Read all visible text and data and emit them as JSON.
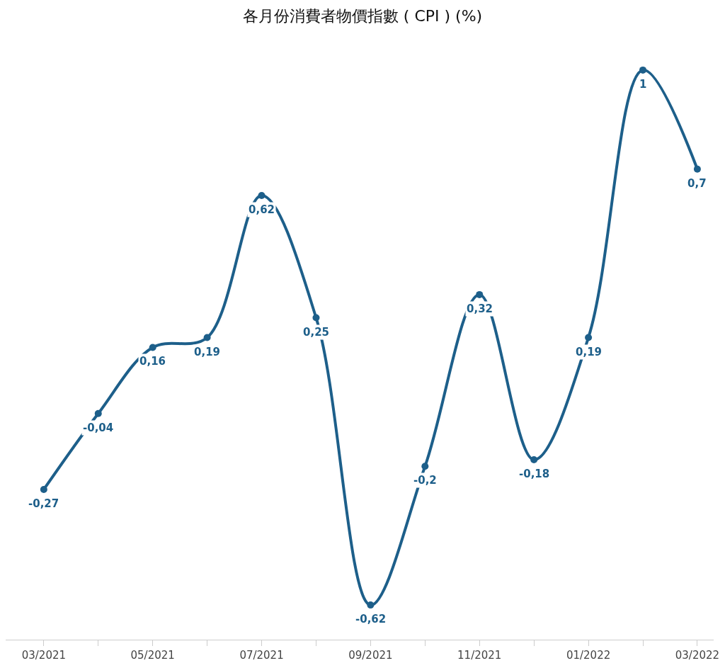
{
  "chart_data": {
    "type": "line",
    "title": "各月份消費者物價指數 ( CPI ) (%)",
    "categories": [
      "03/2021",
      null,
      "05/2021",
      null,
      "07/2021",
      null,
      "09/2021",
      null,
      "11/2021",
      null,
      "01/2022",
      null,
      "03/2022"
    ],
    "values": [
      -0.27,
      -0.04,
      0.16,
      0.19,
      0.62,
      0.25,
      -0.62,
      -0.2,
      0.32,
      -0.18,
      0.19,
      1,
      0.7
    ],
    "value_labels": [
      "-0,27",
      "-0,04",
      "0,16",
      "0,19",
      "0,62",
      "0,25",
      "-0,62",
      "-0,2",
      "0,32",
      "-0,18",
      "0,19",
      "1",
      "0,7"
    ],
    "color": "#1d5f8a",
    "marker": "circle",
    "line_style": "solid",
    "legend": false
  }
}
